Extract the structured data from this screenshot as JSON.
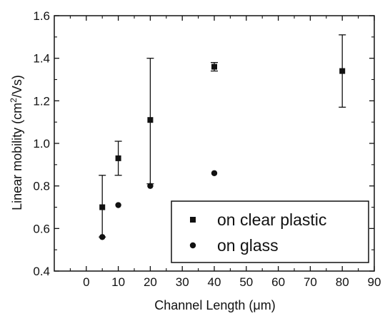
{
  "chart_data": {
    "type": "scatter",
    "title": "",
    "xlabel": "Channel Length (μm)",
    "ylabel": "Linear mobility (cm²/Vs)",
    "xlim": [
      -10,
      90
    ],
    "ylim": [
      0.4,
      1.6
    ],
    "x_ticks": [
      "0",
      "10",
      "20",
      "30",
      "40",
      "50",
      "60",
      "70",
      "80",
      "90"
    ],
    "y_ticks": [
      "0.4",
      "0.6",
      "0.8",
      "1.0",
      "1.2",
      "1.4",
      "1.6"
    ],
    "grid": false,
    "legend_position": "bottom-right",
    "series": [
      {
        "name": "on clear plastic",
        "marker": "square",
        "color": "#111111",
        "points": [
          {
            "x": 5,
            "y": 0.7,
            "err_low": 0.56,
            "err_high": 0.85
          },
          {
            "x": 10,
            "y": 0.93,
            "err_low": 0.85,
            "err_high": 1.01
          },
          {
            "x": 20,
            "y": 1.11,
            "err_low": 0.81,
            "err_high": 1.4
          },
          {
            "x": 40,
            "y": 1.36,
            "err_low": 1.34,
            "err_high": 1.38
          },
          {
            "x": 80,
            "y": 1.34,
            "err_low": 1.17,
            "err_high": 1.51
          }
        ]
      },
      {
        "name": "on glass",
        "marker": "circle",
        "color": "#111111",
        "points": [
          {
            "x": 5,
            "y": 0.56
          },
          {
            "x": 10,
            "y": 0.71
          },
          {
            "x": 20,
            "y": 0.8
          },
          {
            "x": 40,
            "y": 0.86
          }
        ]
      }
    ]
  }
}
